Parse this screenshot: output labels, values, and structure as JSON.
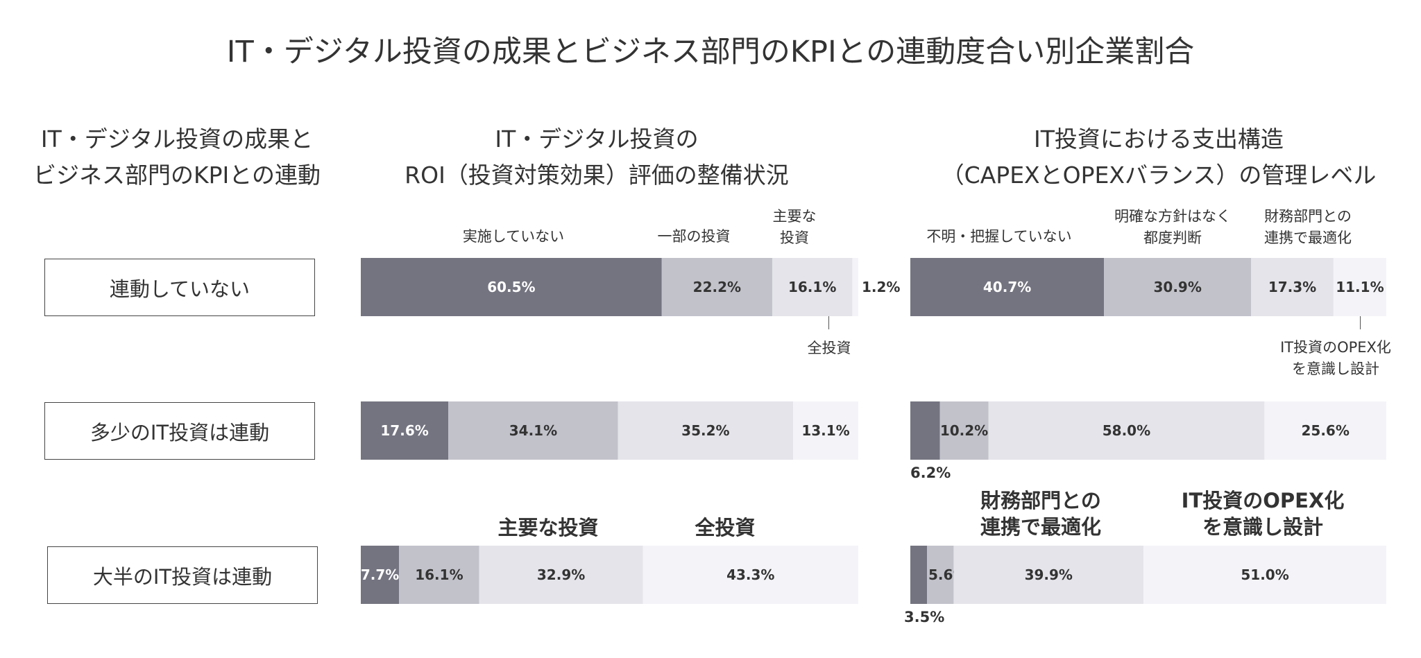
{
  "title": "IT・デジタル投資の成果とビジネス部門のKPIとの連動度合い別企業割合",
  "row_header": {
    "line1": "IT・デジタル投資の成果と",
    "line2": "ビジネス部門のKPIとの連動"
  },
  "rows": [
    "連動していない",
    "多少のIT投資は連動",
    "大半のIT投資は連動"
  ],
  "colors": {
    "seg1": "#747481",
    "seg2": "#c2c2cb",
    "seg3": "#e4e4ea",
    "seg4": "#f4f4f8",
    "text_dark": "#333333",
    "text_light": "#ffffff"
  },
  "roi": {
    "title_line1": "IT・デジタル投資の",
    "title_line2": "ROI（投資対策効果）評価の整備状況",
    "cat_labels": {
      "c1": "実施していない",
      "c2": "一部の投資",
      "c3_line1": "主要な",
      "c3_line2": "投資",
      "c4": "全投資"
    },
    "bottom_headers": {
      "c3": "主要な投資",
      "c4": "全投資"
    }
  },
  "capex": {
    "title_line1": "IT投資における支出構造",
    "title_line2": "（CAPEXとOPEXバランス）の管理レベル",
    "cat_labels": {
      "c1": "不明・把握していない",
      "c2_line1": "明確な方針はなく",
      "c2_line2": "都度判断",
      "c3_line1": "財務部門との",
      "c3_line2": "連携で最適化",
      "c4_line1": "IT投資のOPEX化",
      "c4_line2": "を意識し設計"
    },
    "bottom_headers": {
      "c3_line1": "財務部門との",
      "c3_line2": "連携で最適化",
      "c4_line1": "IT投資のOPEX化",
      "c4_line2": "を意識し設計"
    },
    "outside_labels": {
      "r2_c1": "6.2%",
      "r3_c1": "3.5%"
    }
  },
  "chart_data": [
    {
      "type": "bar",
      "stacked": true,
      "orientation": "horizontal",
      "title": "IT・デジタル投資のROI（投資対策効果）評価の整備状況",
      "categories": [
        "連動していない",
        "多少のIT投資は連動",
        "大半のIT投資は連動"
      ],
      "series": [
        {
          "name": "実施していない",
          "values": [
            60.5,
            17.6,
            7.7
          ],
          "labels": [
            "60.5%",
            "17.6%",
            "7.7%"
          ]
        },
        {
          "name": "一部の投資",
          "values": [
            22.2,
            34.1,
            16.1
          ],
          "labels": [
            "22.2%",
            "34.1%",
            "16.1%"
          ]
        },
        {
          "name": "主要な投資",
          "values": [
            16.1,
            35.2,
            32.9
          ],
          "labels": [
            "16.1%",
            "35.2%",
            "32.9%"
          ]
        },
        {
          "name": "全投資",
          "values": [
            1.2,
            13.1,
            43.3
          ],
          "labels": [
            "1.2%",
            "13.1%",
            "43.3%"
          ]
        }
      ],
      "xlim": [
        0,
        100
      ]
    },
    {
      "type": "bar",
      "stacked": true,
      "orientation": "horizontal",
      "title": "IT投資における支出構造（CAPEXとOPEXバランス）の管理レベル",
      "categories": [
        "連動していない",
        "多少のIT投資は連動",
        "大半のIT投資は連動"
      ],
      "series": [
        {
          "name": "不明・把握していない",
          "values": [
            40.7,
            6.2,
            3.5
          ],
          "labels": [
            "40.7%",
            "",
            ""
          ]
        },
        {
          "name": "明確な方針はなく都度判断",
          "values": [
            30.9,
            10.2,
            5.6
          ],
          "labels": [
            "30.9%",
            "10.2%",
            "5.6%"
          ]
        },
        {
          "name": "財務部門との連携で最適化",
          "values": [
            17.3,
            58.0,
            39.9
          ],
          "labels": [
            "17.3%",
            "58.0%",
            "39.9%"
          ]
        },
        {
          "name": "IT投資のOPEX化を意識し設計",
          "values": [
            11.1,
            25.6,
            51.0
          ],
          "labels": [
            "11.1%",
            "25.6%",
            "51.0%"
          ]
        }
      ],
      "xlim": [
        0,
        100
      ]
    }
  ]
}
